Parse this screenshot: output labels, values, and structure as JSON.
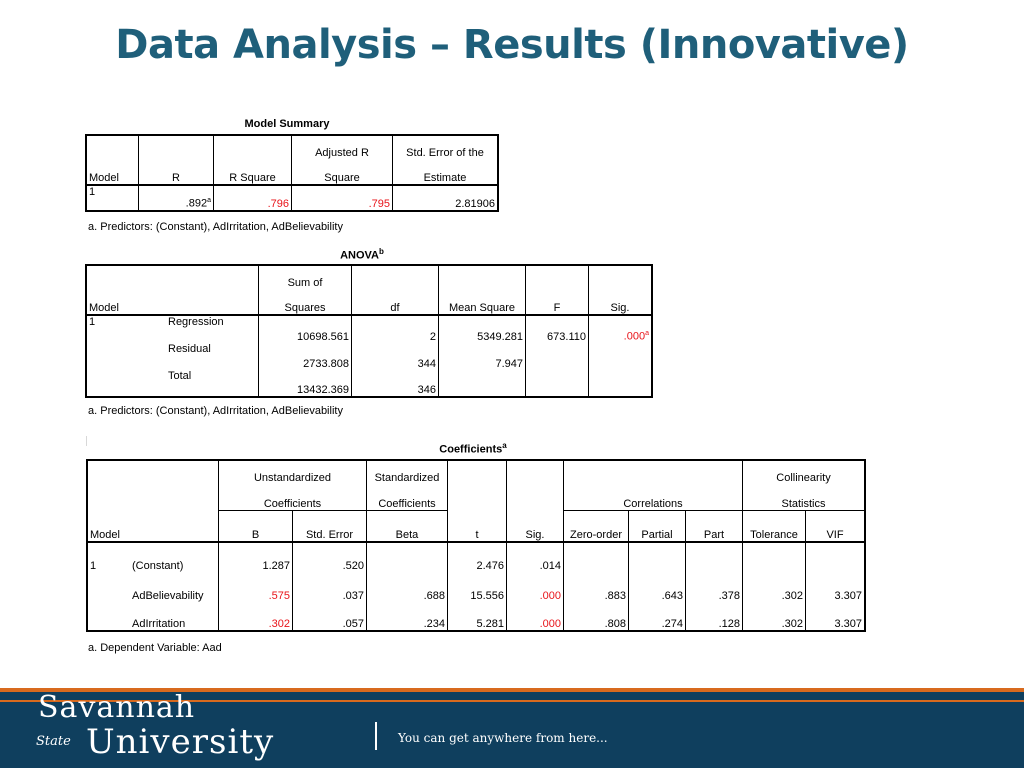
{
  "slide": {
    "title": "Data Analysis – Results (Innovative)"
  },
  "model_summary": {
    "caption": "Model Summary",
    "headers": {
      "model": "Model",
      "r": "R",
      "r_square": "R Square",
      "adj_r_line1": "Adjusted R",
      "adj_r_line2": "Square",
      "se_line1": "Std. Error of the",
      "se_line2": "Estimate"
    },
    "row": {
      "model": "1",
      "r": ".892",
      "r_sup": "a",
      "r_square": ".796",
      "adj_r_square": ".795",
      "std_error": "2.81906"
    },
    "footnote": "a. Predictors: (Constant), AdIrritation, AdBelievability"
  },
  "anova": {
    "caption": "ANOVA",
    "caption_sup": "b",
    "headers": {
      "model": "Model",
      "ss_line1": "Sum of",
      "ss_line2": "Squares",
      "df": "df",
      "ms": "Mean Square",
      "f": "F",
      "sig": "Sig."
    },
    "model_number": "1",
    "rows": [
      {
        "label": "Regression",
        "ss": "10698.561",
        "df": "2",
        "ms": "5349.281",
        "f": "673.110",
        "sig": ".000",
        "sig_sup": "a"
      },
      {
        "label": "Residual",
        "ss": "2733.808",
        "df": "344",
        "ms": "7.947",
        "f": "",
        "sig": "",
        "sig_sup": ""
      },
      {
        "label": "Total",
        "ss": "13432.369",
        "df": "346",
        "ms": "",
        "f": "",
        "sig": "",
        "sig_sup": ""
      }
    ],
    "footnote": "a. Predictors: (Constant), AdIrritation, AdBelievability"
  },
  "coefficients": {
    "caption": "Coefficients",
    "caption_sup": "a",
    "headers": {
      "model": "Model",
      "unstd_line1": "Unstandardized",
      "unstd_line2": "Coefficients",
      "std_line1": "Standardized",
      "std_line2": "Coefficients",
      "correlations": "Correlations",
      "coll_line1": "Collinearity",
      "coll_line2": "Statistics",
      "b": "B",
      "std_error": "Std. Error",
      "beta": "Beta",
      "t": "t",
      "sig": "Sig.",
      "zero_order": "Zero-order",
      "partial": "Partial",
      "part": "Part",
      "tolerance": "Tolerance",
      "vif": "VIF"
    },
    "model_number": "1",
    "rows": [
      {
        "label": "(Constant)",
        "b": "1.287",
        "se": ".520",
        "beta": "",
        "t": "2.476",
        "sig": ".014",
        "zero": "",
        "partial": "",
        "part": "",
        "tol": "",
        "vif": ""
      },
      {
        "label": "AdBelievability",
        "b": ".575",
        "se": ".037",
        "beta": ".688",
        "t": "15.556",
        "sig": ".000",
        "zero": ".883",
        "partial": ".643",
        "part": ".378",
        "tol": ".302",
        "vif": "3.307"
      },
      {
        "label": "AdIrritation",
        "b": ".302",
        "se": ".057",
        "beta": ".234",
        "t": "5.281",
        "sig": ".000",
        "zero": ".808",
        "partial": ".274",
        "part": ".128",
        "tol": ".302",
        "vif": "3.307"
      }
    ],
    "footnote": "a. Dependent Variable: Aad"
  },
  "footer": {
    "logo_line1": "Savannah",
    "logo_state": "State",
    "logo_line2": "University",
    "tagline": "You can get anywhere from here..."
  },
  "colors": {
    "title": "#1f5f7a",
    "highlight": "#e8141a",
    "footer_bg": "#0f3f5e",
    "footer_accent": "#d86a1e"
  }
}
